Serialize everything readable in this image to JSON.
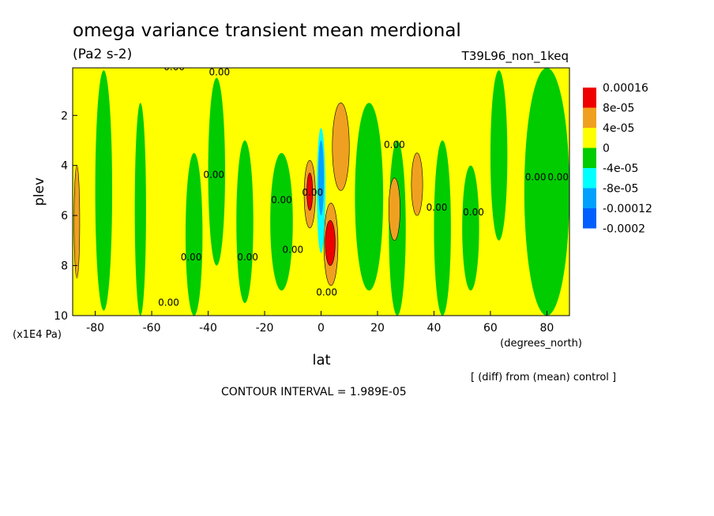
{
  "chart_data": {
    "type": "heatmap",
    "title": "omega variance transient mean merdional",
    "units": "(Pa2 s-2)",
    "experiment": "T39L96_non_1keq",
    "xlabel": "lat",
    "xunits": "(degrees_north)",
    "ylabel": "plev",
    "yunits": "(x1E4 Pa)",
    "xlim": [
      -88,
      88
    ],
    "ylim": [
      10,
      0.1
    ],
    "x_ticks": [
      "-80",
      "-60",
      "-40",
      "-20",
      "0",
      "20",
      "40",
      "60",
      "80"
    ],
    "x_tick_values": [
      -80,
      -60,
      -40,
      -20,
      0,
      20,
      40,
      60,
      80
    ],
    "y_ticks": [
      "2",
      "4",
      "6",
      "8",
      "10"
    ],
    "y_tick_values": [
      2,
      4,
      6,
      8,
      10
    ],
    "legend": {
      "levels": [
        "0.00016",
        "8e-05",
        "4e-05",
        "0",
        "-4e-05",
        "-8e-05",
        "-0.00012",
        "-0.0002"
      ],
      "colors": [
        "#ee0000",
        "#f0a020",
        "#ffff00",
        "#00cc00",
        "#00ffff",
        "#00a0ff",
        "#0060ff"
      ]
    },
    "contour_label": "0.00",
    "diff_note": "[ (diff) from (mean) control ]",
    "contour_interval": "CONTOUR INTERVAL = 1.989E-05",
    "regions": [
      {
        "kind": "green",
        "lon": [
          -80,
          -74
        ],
        "plev": [
          0.2,
          9.8
        ]
      },
      {
        "kind": "green",
        "lon": [
          -66,
          -62
        ],
        "plev": [
          1.5,
          10
        ]
      },
      {
        "kind": "green",
        "lon": [
          -48,
          -42
        ],
        "plev": [
          3.5,
          10
        ]
      },
      {
        "kind": "green",
        "lon": [
          -40,
          -34
        ],
        "plev": [
          0.5,
          8
        ]
      },
      {
        "kind": "green",
        "lon": [
          -30,
          -24
        ],
        "plev": [
          3,
          9.5
        ]
      },
      {
        "kind": "green",
        "lon": [
          -18,
          -10
        ],
        "plev": [
          3.5,
          9
        ]
      },
      {
        "kind": "green",
        "lon": [
          12,
          22
        ],
        "plev": [
          1.5,
          9
        ]
      },
      {
        "kind": "green",
        "lon": [
          24,
          30
        ],
        "plev": [
          3,
          10
        ]
      },
      {
        "kind": "green",
        "lon": [
          40,
          46
        ],
        "plev": [
          3,
          10
        ]
      },
      {
        "kind": "green",
        "lon": [
          50,
          56
        ],
        "plev": [
          4,
          9
        ]
      },
      {
        "kind": "green",
        "lon": [
          60,
          66
        ],
        "plev": [
          0.2,
          7
        ]
      },
      {
        "kind": "green",
        "lon": [
          72,
          88
        ],
        "plev": [
          0.1,
          10
        ]
      },
      {
        "kind": "orange",
        "lon": [
          -6,
          -2
        ],
        "plev": [
          3.8,
          6.5
        ]
      },
      {
        "kind": "red",
        "lon": [
          -5,
          -3
        ],
        "plev": [
          4.3,
          5.8
        ]
      },
      {
        "kind": "orange",
        "lon": [
          4,
          10
        ],
        "plev": [
          1.5,
          5
        ]
      },
      {
        "kind": "orange",
        "lon": [
          1,
          6
        ],
        "plev": [
          5.5,
          8.8
        ]
      },
      {
        "kind": "red",
        "lon": [
          1.5,
          5
        ],
        "plev": [
          6.2,
          8
        ]
      },
      {
        "kind": "cyan",
        "lon": [
          -1.5,
          1.5
        ],
        "plev": [
          2.5,
          7.5
        ]
      },
      {
        "kind": "blue",
        "lon": [
          -1,
          1
        ],
        "plev": [
          3,
          6
        ]
      },
      {
        "kind": "orange",
        "lon": [
          24,
          28
        ],
        "plev": [
          4.5,
          7
        ]
      },
      {
        "kind": "orange",
        "lon": [
          32,
          36
        ],
        "plev": [
          3.5,
          6
        ]
      },
      {
        "kind": "orange",
        "lon": [
          -87.5,
          -85.5
        ],
        "plev": [
          4,
          8.5
        ]
      }
    ]
  }
}
